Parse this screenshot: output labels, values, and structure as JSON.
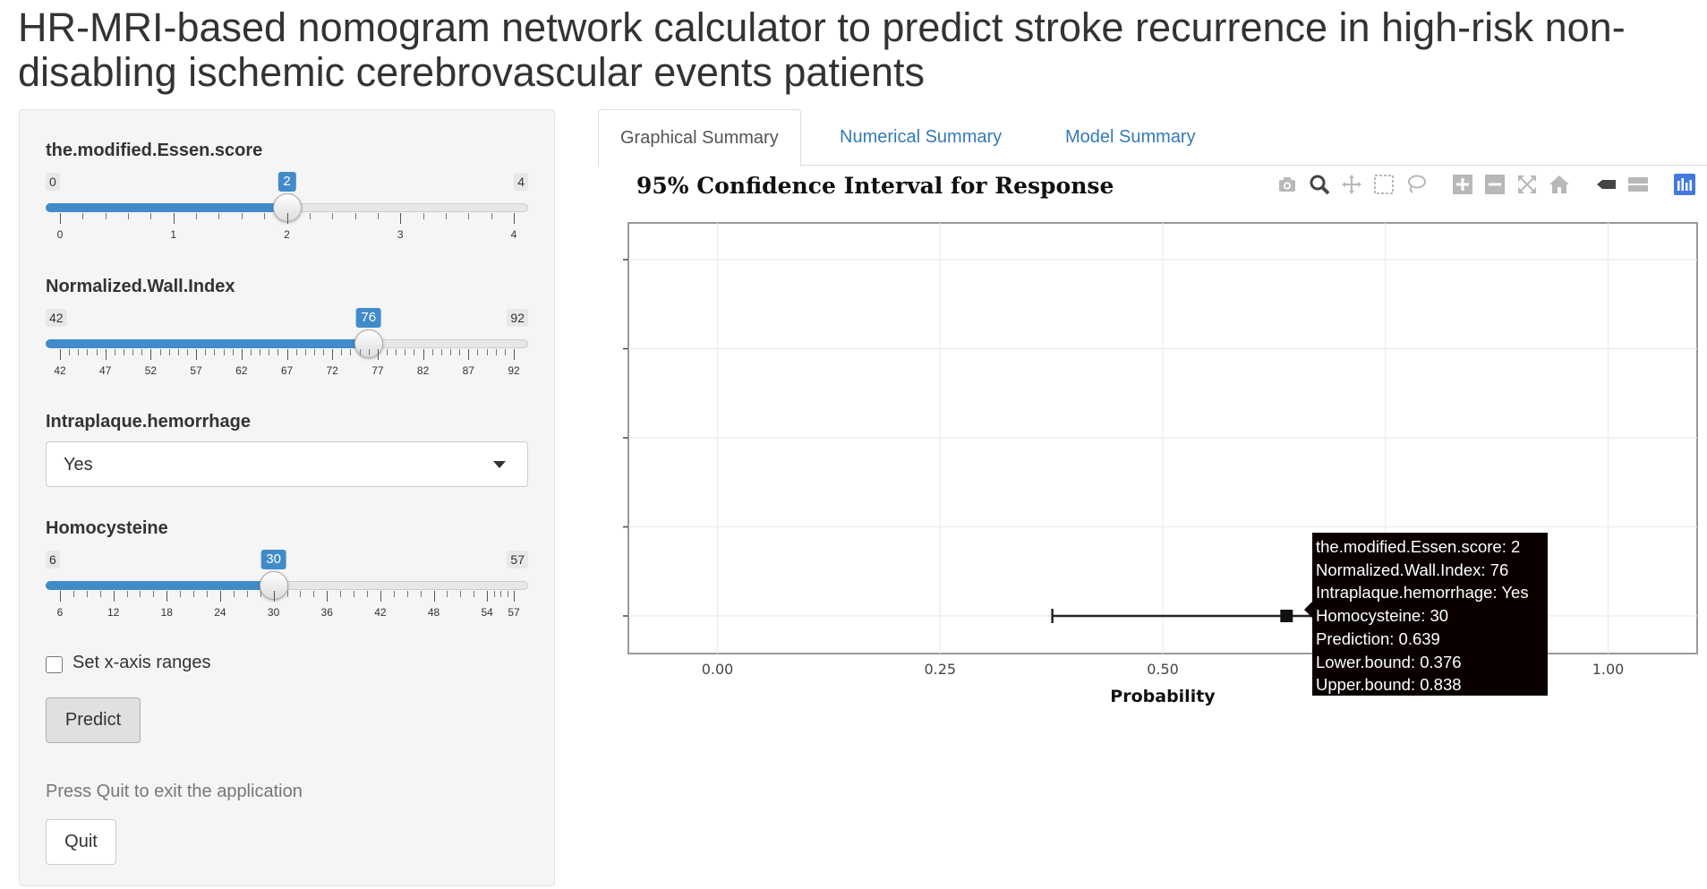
{
  "page": {
    "title": "HR-MRI-based nomogram network calculator to predict stroke recurrence in high-risk non-disabling ischemic cerebrovascular events patients"
  },
  "sidebar": {
    "essen": {
      "label": "the.modified.Essen.score",
      "min": 0,
      "max": 4,
      "value": 2,
      "min_label": "0",
      "max_label": "4",
      "value_label": "2",
      "ticks": [
        "0",
        "1",
        "2",
        "3",
        "4"
      ],
      "minor_per_major": 4
    },
    "nwi": {
      "label": "Normalized.Wall.Index",
      "min": 42,
      "max": 92,
      "value": 76,
      "min_label": "42",
      "max_label": "92",
      "value_label": "76",
      "ticks": [
        "42",
        "47",
        "52",
        "57",
        "62",
        "67",
        "72",
        "77",
        "82",
        "87",
        "92"
      ],
      "minor_per_major": 4
    },
    "hemorrhage": {
      "label": "Intraplaque.hemorrhage",
      "value": "Yes"
    },
    "homocysteine": {
      "label": "Homocysteine",
      "min": 6,
      "max": 57,
      "value": 30,
      "min_label": "6",
      "max_label": "57",
      "value_label": "30",
      "ticks": [
        "6",
        "12",
        "18",
        "24",
        "30",
        "36",
        "42",
        "48",
        "54",
        "57"
      ]
    },
    "xaxis_checkbox_label": "Set x-axis ranges",
    "predict_label": "Predict",
    "quit_hint": "Press Quit to exit the application",
    "quit_label": "Quit"
  },
  "tabs": [
    {
      "label": "Graphical Summary",
      "active": true
    },
    {
      "label": "Numerical Summary",
      "active": false
    },
    {
      "label": "Model Summary",
      "active": false
    }
  ],
  "modebar_icons": [
    "camera-icon",
    "zoom-icon",
    "pan-icon",
    "box-select-icon",
    "lasso-select-icon",
    "zoom-in-icon",
    "zoom-out-icon",
    "autoscale-icon",
    "reset-axes-icon",
    "spike-lines-icon",
    "compare-hover-icon",
    "plotly-logo-icon"
  ],
  "chart_data": {
    "type": "scatter",
    "title": "95% Confidence Interval for Response",
    "xlabel": "Probability",
    "ylabel": "",
    "xlim": [
      -0.1,
      1.1
    ],
    "xticks": [
      "0.00",
      "0.25",
      "0.50",
      "0.75",
      "1.00"
    ],
    "xtick_values": [
      0,
      0.25,
      0.5,
      0.75,
      1.0
    ],
    "grid": true,
    "points": [
      {
        "x": 0.639,
        "lower": 0.376,
        "upper": 0.838
      }
    ],
    "tooltip": [
      "the.modified.Essen.score: 2",
      "Normalized.Wall.Index: 76",
      "Intraplaque.hemorrhage: Yes",
      "Homocysteine: 30",
      "Prediction: 0.639",
      "Lower.bound: 0.376",
      "Upper.bound: 0.838"
    ]
  }
}
